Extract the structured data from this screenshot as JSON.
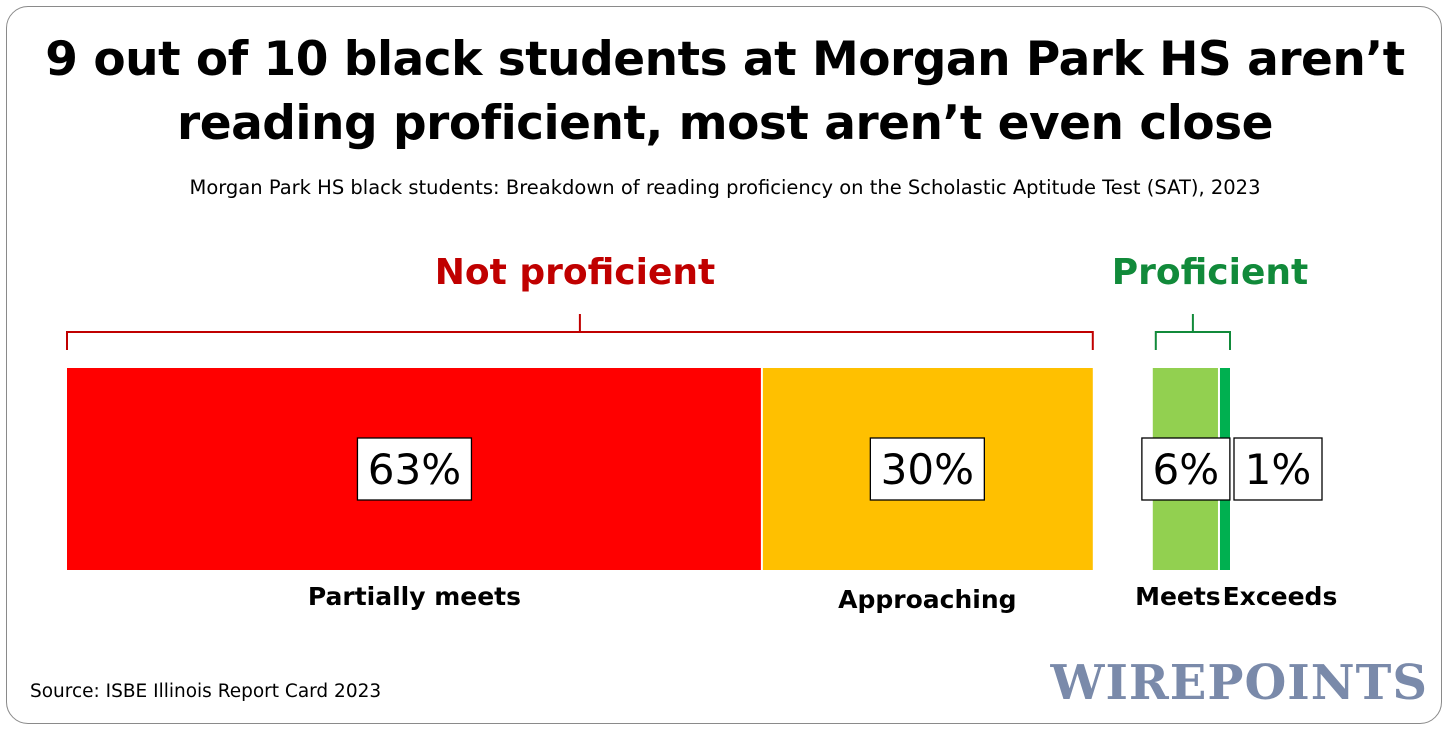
{
  "title": "9 out of 10 black students at Morgan Park HS aren’t reading proficient, most aren’t even close",
  "subtitle": "Morgan Park HS black students: Breakdown of reading proficiency on the Scholastic Aptitude Test (SAT), 2023",
  "source": "Source: ISBE Illinois Report Card 2023",
  "logo_text": "WIREPOINTS",
  "colors": {
    "not_proficient": "#c00000",
    "proficient": "#118a3a",
    "partially_meets": "#ff0000",
    "approaching": "#ffc000",
    "meets": "#92d050",
    "exceeds": "#00b050",
    "logo": "#7a8aaa"
  },
  "chart_data": {
    "type": "bar",
    "orientation": "horizontal-stacked",
    "unit": "%",
    "groups": [
      {
        "label": "Not proficient",
        "categories": [
          "Partially meets",
          "Approaching"
        ]
      },
      {
        "label": "Proficient",
        "categories": [
          "Meets",
          "Exceeds"
        ]
      }
    ],
    "categories": [
      "Partially meets",
      "Approaching",
      "Meets",
      "Exceeds"
    ],
    "values": [
      63,
      30,
      6,
      1
    ],
    "data_labels": [
      "63%",
      "30%",
      "6%",
      "1%"
    ]
  }
}
